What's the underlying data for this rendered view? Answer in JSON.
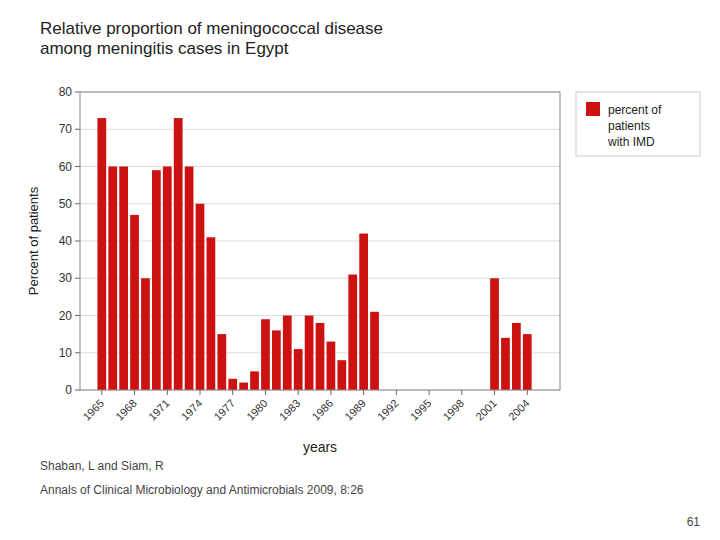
{
  "chart_data": {
    "type": "bar",
    "title": "Relative proportion of meningococcal disease\namong meningitis cases in Egypt",
    "x_label": "years",
    "y_label": "Percent of patients",
    "x": [
      1965,
      1966,
      1967,
      1968,
      1969,
      1970,
      1971,
      1972,
      1973,
      1974,
      1975,
      1976,
      1977,
      1978,
      1979,
      1980,
      1981,
      1982,
      1983,
      1984,
      1985,
      1986,
      1987,
      1988,
      1989,
      1990,
      2001,
      2002,
      2003,
      2004
    ],
    "series": [
      {
        "name": "percent of\npatients\nwith IMD",
        "color": "#cc1111",
        "values": [
          73,
          60,
          60,
          47,
          30,
          59,
          60,
          73,
          60,
          50,
          41,
          15,
          3,
          2,
          5,
          19,
          16,
          20,
          11,
          20,
          18,
          13,
          8,
          31,
          42,
          21,
          30,
          14,
          18,
          15
        ]
      }
    ],
    "xlim": [
      1963,
      2007
    ],
    "xticks": [
      1965,
      1968,
      1971,
      1974,
      1977,
      1980,
      1983,
      1986,
      1989,
      1992,
      1995,
      1998,
      2001,
      2004
    ],
    "ylim": [
      0,
      80
    ],
    "yticks": [
      0,
      10,
      20,
      30,
      40,
      50,
      60,
      70,
      80
    ],
    "grid": true,
    "legend": "right",
    "annotations": [
      "Shaban, L and Siam, R",
      "Annals of Clinical Microbiology and Antimicrobials 2009, 8:26",
      "61"
    ]
  }
}
